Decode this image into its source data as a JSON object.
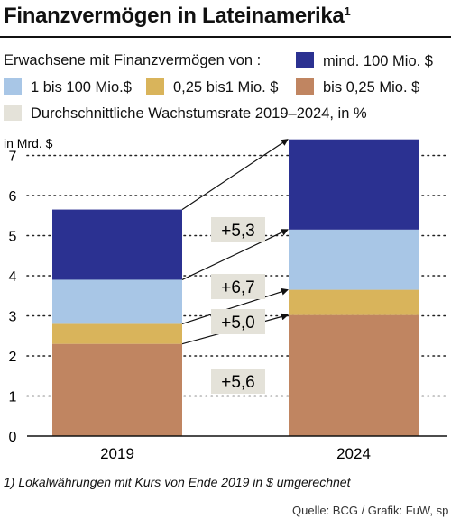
{
  "title": "Finanzvermögen in Lateinamerika",
  "title_footnote_mark": "1",
  "legend": {
    "header": "Erwachsene mit Finanzvermögen von :",
    "items": [
      {
        "label": "mind. 100 Mio. $",
        "color": "#2b3191"
      },
      {
        "label": "1 bis 100 Mio.$",
        "color": "#a8c6e6"
      },
      {
        "label": "0,25 bis1 Mio. $",
        "color": "#d9b45b"
      },
      {
        "label": "bis 0,25 Mio. $",
        "color": "#c08561"
      },
      {
        "label": "Durchschnittliche Wachstumsrate 2019–2024, in %",
        "color": "#e4e2d9"
      }
    ]
  },
  "chart_data": {
    "type": "bar",
    "stacked": true,
    "unit_label": "in Mrd. $",
    "categories": [
      "2019",
      "2024"
    ],
    "ylim": [
      0,
      7
    ],
    "yticks": [
      "0",
      "1",
      "2",
      "3",
      "4",
      "5",
      "6",
      "7"
    ],
    "series": [
      {
        "name": "bis 0,25 Mio. $",
        "color": "#c08561",
        "values": [
          2.3,
          3.02
        ]
      },
      {
        "name": "0,25 bis1 Mio. $",
        "color": "#d9b45b",
        "values": [
          0.5,
          0.63
        ]
      },
      {
        "name": "1 bis 100 Mio.$",
        "color": "#a8c6e6",
        "values": [
          1.1,
          1.5
        ]
      },
      {
        "name": "mind. 100 Mio. $",
        "color": "#2b3191",
        "values": [
          1.75,
          2.25
        ]
      }
    ],
    "growth_labels": [
      "+5,6",
      "+5,0",
      "+6,7",
      "+5,3"
    ],
    "grid": true
  },
  "footnote": "1) Lokalwährungen mit Kurs von Ende 2019 in $ umgerechnet",
  "source": "Quelle: BCG / Grafik: FuW, sp"
}
